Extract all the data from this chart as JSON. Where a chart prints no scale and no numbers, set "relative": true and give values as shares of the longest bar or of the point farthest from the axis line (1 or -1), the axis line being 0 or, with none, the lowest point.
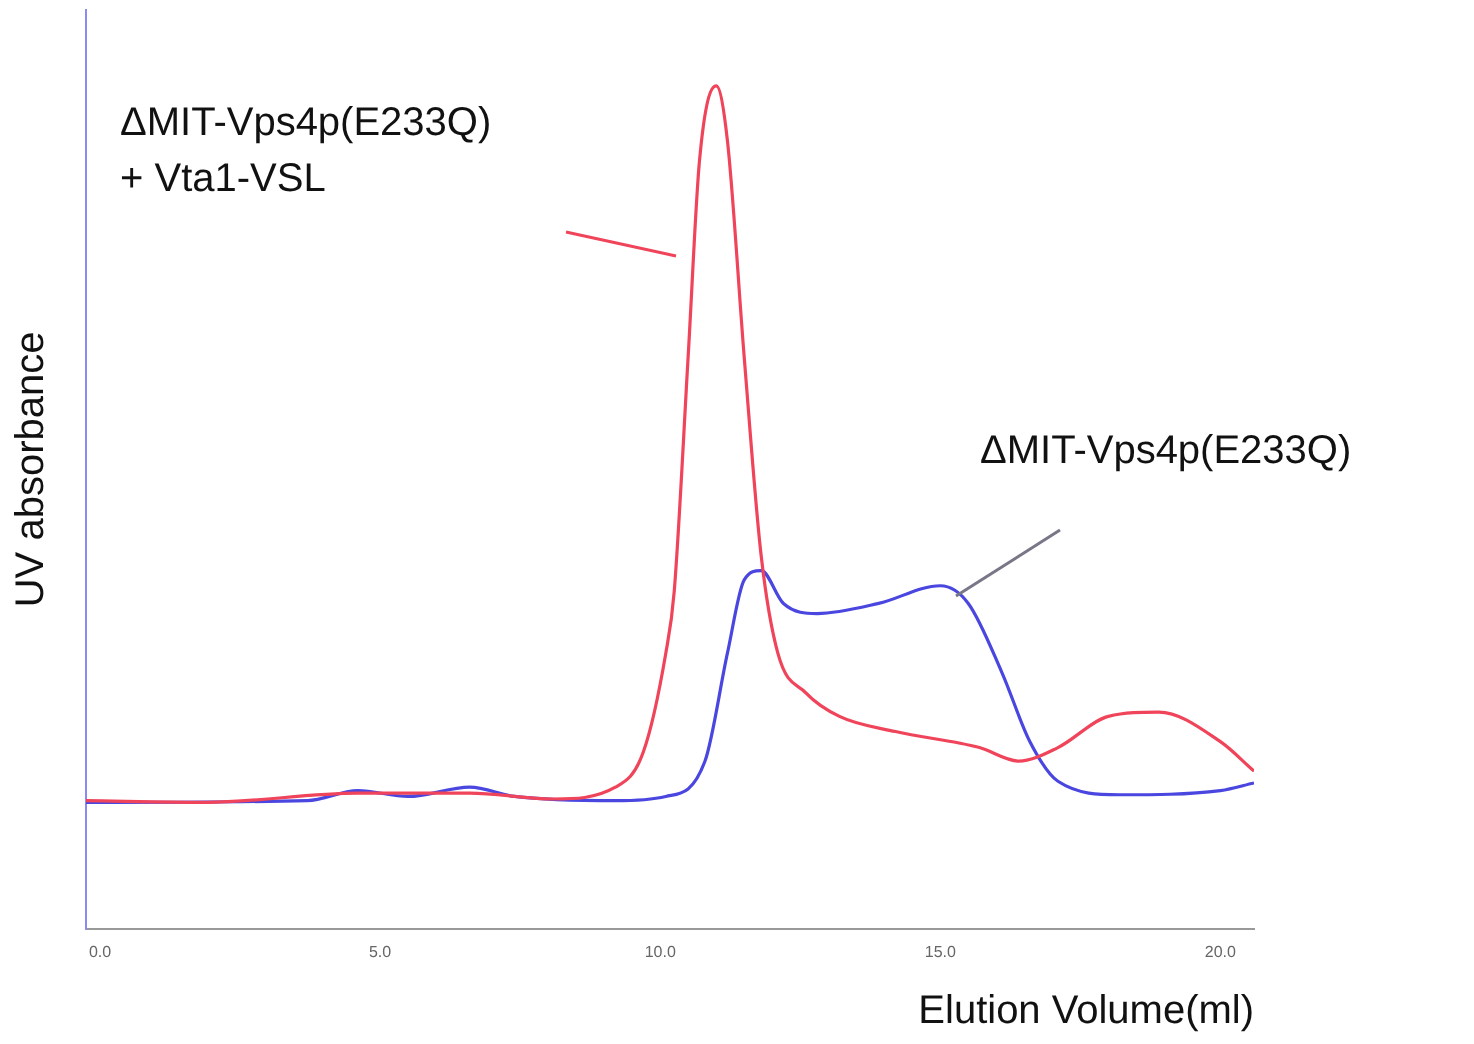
{
  "chart_data": {
    "type": "line",
    "relative": true,
    "xlabel": "Elution Volume(ml)",
    "ylabel": "UV absorbance",
    "xlim": [
      -0.25,
      20.6
    ],
    "xticks": [
      {
        "value": 0,
        "label": "0.0"
      },
      {
        "value": 5,
        "label": "5.0"
      },
      {
        "value": 10,
        "label": "10.0"
      },
      {
        "value": 15,
        "label": "15.0"
      },
      {
        "value": 20,
        "label": "20.0"
      }
    ],
    "tick_labels": "x",
    "grid": false,
    "legend": false,
    "marker": "none",
    "line_style": "solid",
    "series": [
      {
        "color": "#f0445a",
        "x": [
          -0.25,
          1.9,
          4.6,
          6.6,
          8.1,
          9.2,
          9.7,
          10.1,
          10.25,
          10.5,
          10.7,
          11.0,
          11.2,
          11.5,
          11.8,
          12.1,
          12.6,
          13.2,
          14.2,
          15.7,
          16.4,
          17.1,
          18.0,
          18.9,
          20.0,
          20.6
        ],
        "values": [
          0.152,
          0.15,
          0.161,
          0.161,
          0.154,
          0.168,
          0.21,
          0.327,
          0.4,
          0.68,
          0.91,
          1.0,
          0.935,
          0.678,
          0.444,
          0.327,
          0.28,
          0.252,
          0.234,
          0.215,
          0.199,
          0.215,
          0.252,
          0.257,
          0.222,
          0.187
        ]
      },
      {
        "color": "#4a46e0",
        "x": [
          -0.25,
          3.7,
          4.6,
          5.5,
          6.6,
          7.4,
          9.2,
          10.1,
          10.8,
          11.2,
          11.5,
          11.8,
          12.2,
          12.8,
          13.9,
          15.0,
          15.5,
          16.1,
          16.6,
          17.1,
          18.2,
          20.0,
          20.6
        ],
        "values": [
          0.15,
          0.152,
          0.164,
          0.157,
          0.168,
          0.157,
          0.152,
          0.157,
          0.199,
          0.327,
          0.414,
          0.425,
          0.386,
          0.374,
          0.386,
          0.407,
          0.386,
          0.304,
          0.222,
          0.175,
          0.159,
          0.164,
          0.173
        ]
      }
    ],
    "annotations": [
      "ΔMIT-Vps4p(E233Q)\n+ Vta1-VSL",
      "ΔMIT-Vps4p(E233Q)"
    ]
  }
}
